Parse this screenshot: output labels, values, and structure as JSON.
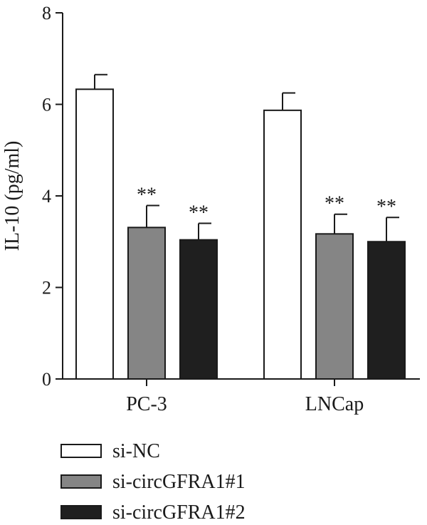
{
  "chart_data": {
    "type": "bar",
    "ylabel": "IL-10 (pg/ml)",
    "xlabel": "",
    "ylim": [
      0,
      8
    ],
    "yticks": [
      "0",
      "2",
      "4",
      "6",
      "8"
    ],
    "categories": [
      "PC-3",
      "LNCap"
    ],
    "series": [
      {
        "name": "si-NC",
        "color": "#ffffff",
        "values": [
          6.33,
          5.87
        ],
        "errors": [
          0.32,
          0.38
        ],
        "significance": [
          "",
          ""
        ]
      },
      {
        "name": "si-circGFRA1#1",
        "color": "#858585",
        "values": [
          3.31,
          3.17
        ],
        "errors": [
          0.48,
          0.43
        ],
        "significance": [
          "**",
          "**"
        ]
      },
      {
        "name": "si-circGFRA1#2",
        "color": "#1f1f1f",
        "values": [
          3.04,
          3.0
        ],
        "errors": [
          0.36,
          0.53
        ],
        "significance": [
          "**",
          "**"
        ]
      }
    ],
    "legend": "bottom",
    "grid": false
  }
}
